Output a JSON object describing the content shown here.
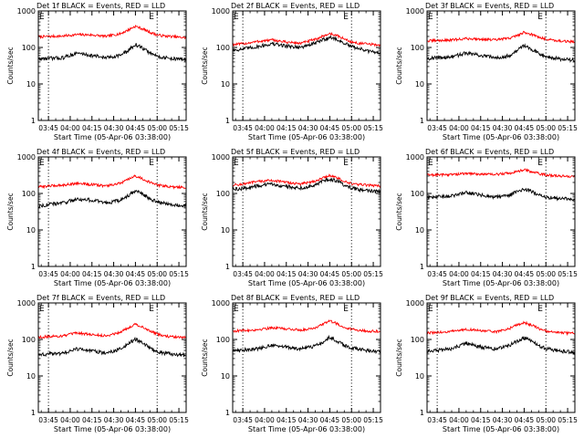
{
  "style": {
    "events_color": "#000000",
    "lld_color": "#ff0000",
    "background": "#ffffff"
  },
  "shared": {
    "x_ticks": [
      "03:45",
      "04:00",
      "04:15",
      "04:30",
      "04:45",
      "05:00",
      "05:15"
    ],
    "x_tick_minutes": [
      0,
      15,
      30,
      45,
      60,
      75,
      90
    ],
    "y_ticks": [
      "1",
      "10",
      "100",
      "1000"
    ],
    "y_tick_values": [
      1,
      10,
      100,
      1000
    ],
    "xlabel": "Start Time (05-Apr-06 03:38:00)",
    "ylabel": "Counts/sec",
    "x_range_minutes": [
      -7,
      95
    ],
    "ylim": [
      1,
      1000
    ],
    "ylog": true,
    "e_marker": "E",
    "vlines_minutes": [
      0,
      75
    ]
  },
  "chart_data": [
    {
      "type": "line",
      "title": "Det 1f BLACK = Events, RED = LLD",
      "series": [
        {
          "name": "LLD",
          "color": "#ff0000",
          "x": [
            -7,
            0,
            10,
            20,
            30,
            40,
            50,
            55,
            60,
            65,
            70,
            75,
            80,
            85,
            90,
            95
          ],
          "y": [
            195,
            200,
            205,
            225,
            220,
            200,
            240,
            300,
            380,
            320,
            260,
            220,
            205,
            200,
            190,
            185
          ]
        },
        {
          "name": "Events",
          "color": "#000000",
          "x": [
            -7,
            0,
            10,
            20,
            30,
            40,
            50,
            55,
            60,
            65,
            70,
            75,
            80,
            85,
            90,
            95
          ],
          "y": [
            48,
            50,
            52,
            70,
            60,
            52,
            62,
            80,
            120,
            95,
            70,
            58,
            52,
            50,
            48,
            47
          ]
        }
      ]
    },
    {
      "type": "line",
      "title": "Det 2f BLACK = Events, RED = LLD",
      "series": [
        {
          "name": "LLD",
          "color": "#ff0000",
          "x": [
            -7,
            0,
            10,
            20,
            30,
            40,
            50,
            55,
            60,
            65,
            70,
            75,
            80,
            85,
            90,
            95
          ],
          "y": [
            120,
            125,
            145,
            160,
            140,
            130,
            165,
            200,
            240,
            210,
            170,
            140,
            130,
            125,
            120,
            115
          ]
        },
        {
          "name": "Events",
          "color": "#000000",
          "x": [
            -7,
            0,
            10,
            20,
            30,
            40,
            50,
            55,
            60,
            65,
            70,
            75,
            80,
            85,
            90,
            95
          ],
          "y": [
            85,
            90,
            105,
            125,
            110,
            100,
            130,
            160,
            190,
            165,
            130,
            105,
            95,
            80,
            75,
            72
          ]
        }
      ]
    },
    {
      "type": "line",
      "title": "Det 3f BLACK = Events, RED = LLD",
      "series": [
        {
          "name": "LLD",
          "color": "#ff0000",
          "x": [
            -7,
            0,
            10,
            20,
            30,
            40,
            50,
            55,
            60,
            65,
            70,
            75,
            80,
            85,
            90,
            95
          ],
          "y": [
            150,
            155,
            160,
            175,
            170,
            160,
            180,
            210,
            260,
            230,
            190,
            170,
            160,
            150,
            145,
            140
          ]
        },
        {
          "name": "Events",
          "color": "#000000",
          "x": [
            -7,
            0,
            10,
            20,
            30,
            40,
            50,
            55,
            60,
            65,
            70,
            75,
            80,
            85,
            90,
            95
          ],
          "y": [
            50,
            52,
            55,
            70,
            60,
            52,
            60,
            80,
            115,
            90,
            70,
            58,
            52,
            48,
            46,
            45
          ]
        }
      ]
    },
    {
      "type": "line",
      "title": "Det 4f BLACK = Events, RED = LLD",
      "series": [
        {
          "name": "LLD",
          "color": "#ff0000",
          "x": [
            -7,
            0,
            10,
            20,
            30,
            40,
            50,
            55,
            60,
            65,
            70,
            75,
            80,
            85,
            90,
            95
          ],
          "y": [
            150,
            160,
            170,
            190,
            175,
            160,
            190,
            240,
            300,
            250,
            200,
            170,
            160,
            150,
            148,
            145
          ]
        },
        {
          "name": "Events",
          "color": "#000000",
          "x": [
            -7,
            0,
            10,
            20,
            30,
            40,
            50,
            55,
            60,
            65,
            70,
            75,
            80,
            85,
            90,
            95
          ],
          "y": [
            45,
            50,
            55,
            70,
            65,
            55,
            65,
            85,
            120,
            95,
            70,
            58,
            55,
            50,
            48,
            46
          ]
        }
      ]
    },
    {
      "type": "line",
      "title": "Det 5f BLACK = Events, RED = LLD",
      "series": [
        {
          "name": "LLD",
          "color": "#ff0000",
          "x": [
            -7,
            0,
            10,
            20,
            30,
            40,
            50,
            55,
            60,
            65,
            70,
            75,
            80,
            85,
            90,
            95
          ],
          "y": [
            170,
            180,
            210,
            230,
            200,
            180,
            220,
            260,
            310,
            270,
            210,
            185,
            175,
            170,
            165,
            160
          ]
        },
        {
          "name": "Events",
          "color": "#000000",
          "x": [
            -7,
            0,
            10,
            20,
            30,
            40,
            50,
            55,
            60,
            65,
            70,
            75,
            80,
            85,
            90,
            95
          ],
          "y": [
            130,
            135,
            160,
            180,
            155,
            140,
            170,
            210,
            250,
            220,
            170,
            140,
            130,
            120,
            115,
            110
          ]
        }
      ]
    },
    {
      "type": "line",
      "title": "Det 6f BLACK = Events, RED = LLD",
      "series": [
        {
          "name": "LLD",
          "color": "#ff0000",
          "x": [
            -7,
            0,
            10,
            20,
            30,
            40,
            50,
            55,
            60,
            65,
            70,
            75,
            80,
            85,
            90,
            95
          ],
          "y": [
            320,
            325,
            330,
            350,
            340,
            330,
            360,
            400,
            440,
            400,
            350,
            320,
            310,
            300,
            295,
            290
          ]
        },
        {
          "name": "Events",
          "color": "#000000",
          "x": [
            -7,
            0,
            10,
            20,
            30,
            40,
            50,
            55,
            60,
            65,
            70,
            75,
            80,
            85,
            90,
            95
          ],
          "y": [
            75,
            80,
            85,
            105,
            90,
            80,
            90,
            115,
            130,
            115,
            90,
            80,
            76,
            72,
            70,
            68
          ]
        }
      ]
    },
    {
      "type": "line",
      "title": "Det 7f BLACK = Events, RED = LLD",
      "series": [
        {
          "name": "LLD",
          "color": "#ff0000",
          "x": [
            -7,
            0,
            10,
            20,
            30,
            40,
            50,
            55,
            60,
            65,
            70,
            75,
            80,
            85,
            90,
            95
          ],
          "y": [
            115,
            120,
            125,
            150,
            135,
            125,
            160,
            210,
            260,
            220,
            170,
            140,
            125,
            118,
            115,
            112
          ]
        },
        {
          "name": "Events",
          "color": "#000000",
          "x": [
            -7,
            0,
            10,
            20,
            30,
            40,
            50,
            55,
            60,
            65,
            70,
            75,
            80,
            85,
            90,
            95
          ],
          "y": [
            38,
            40,
            42,
            55,
            48,
            42,
            55,
            75,
            100,
            80,
            58,
            46,
            42,
            40,
            38,
            37
          ]
        }
      ]
    },
    {
      "type": "line",
      "title": "Det 8f BLACK = Events, RED = LLD",
      "series": [
        {
          "name": "LLD",
          "color": "#ff0000",
          "x": [
            -7,
            0,
            10,
            20,
            30,
            40,
            50,
            55,
            60,
            65,
            70,
            75,
            80,
            85,
            90,
            95
          ],
          "y": [
            170,
            175,
            185,
            210,
            195,
            180,
            210,
            260,
            320,
            270,
            215,
            190,
            180,
            172,
            168,
            165
          ]
        },
        {
          "name": "Events",
          "color": "#000000",
          "x": [
            -7,
            0,
            10,
            20,
            30,
            40,
            50,
            55,
            60,
            65,
            70,
            75,
            80,
            85,
            90,
            95
          ],
          "y": [
            50,
            52,
            55,
            70,
            62,
            55,
            65,
            85,
            115,
            90,
            68,
            58,
            54,
            50,
            48,
            47
          ]
        }
      ]
    },
    {
      "type": "line",
      "title": "Det 9f BLACK = Events, RED = LLD",
      "series": [
        {
          "name": "LLD",
          "color": "#ff0000",
          "x": [
            -7,
            0,
            10,
            20,
            30,
            40,
            50,
            55,
            60,
            65,
            70,
            75,
            80,
            85,
            90,
            95
          ],
          "y": [
            150,
            155,
            165,
            190,
            175,
            160,
            200,
            250,
            290,
            250,
            200,
            170,
            158,
            152,
            148,
            145
          ]
        },
        {
          "name": "Events",
          "color": "#000000",
          "x": [
            -7,
            0,
            10,
            20,
            30,
            40,
            50,
            55,
            60,
            65,
            70,
            75,
            80,
            85,
            90,
            95
          ],
          "y": [
            48,
            50,
            55,
            78,
            62,
            55,
            70,
            90,
            110,
            90,
            68,
            56,
            52,
            48,
            46,
            45
          ]
        }
      ]
    }
  ]
}
